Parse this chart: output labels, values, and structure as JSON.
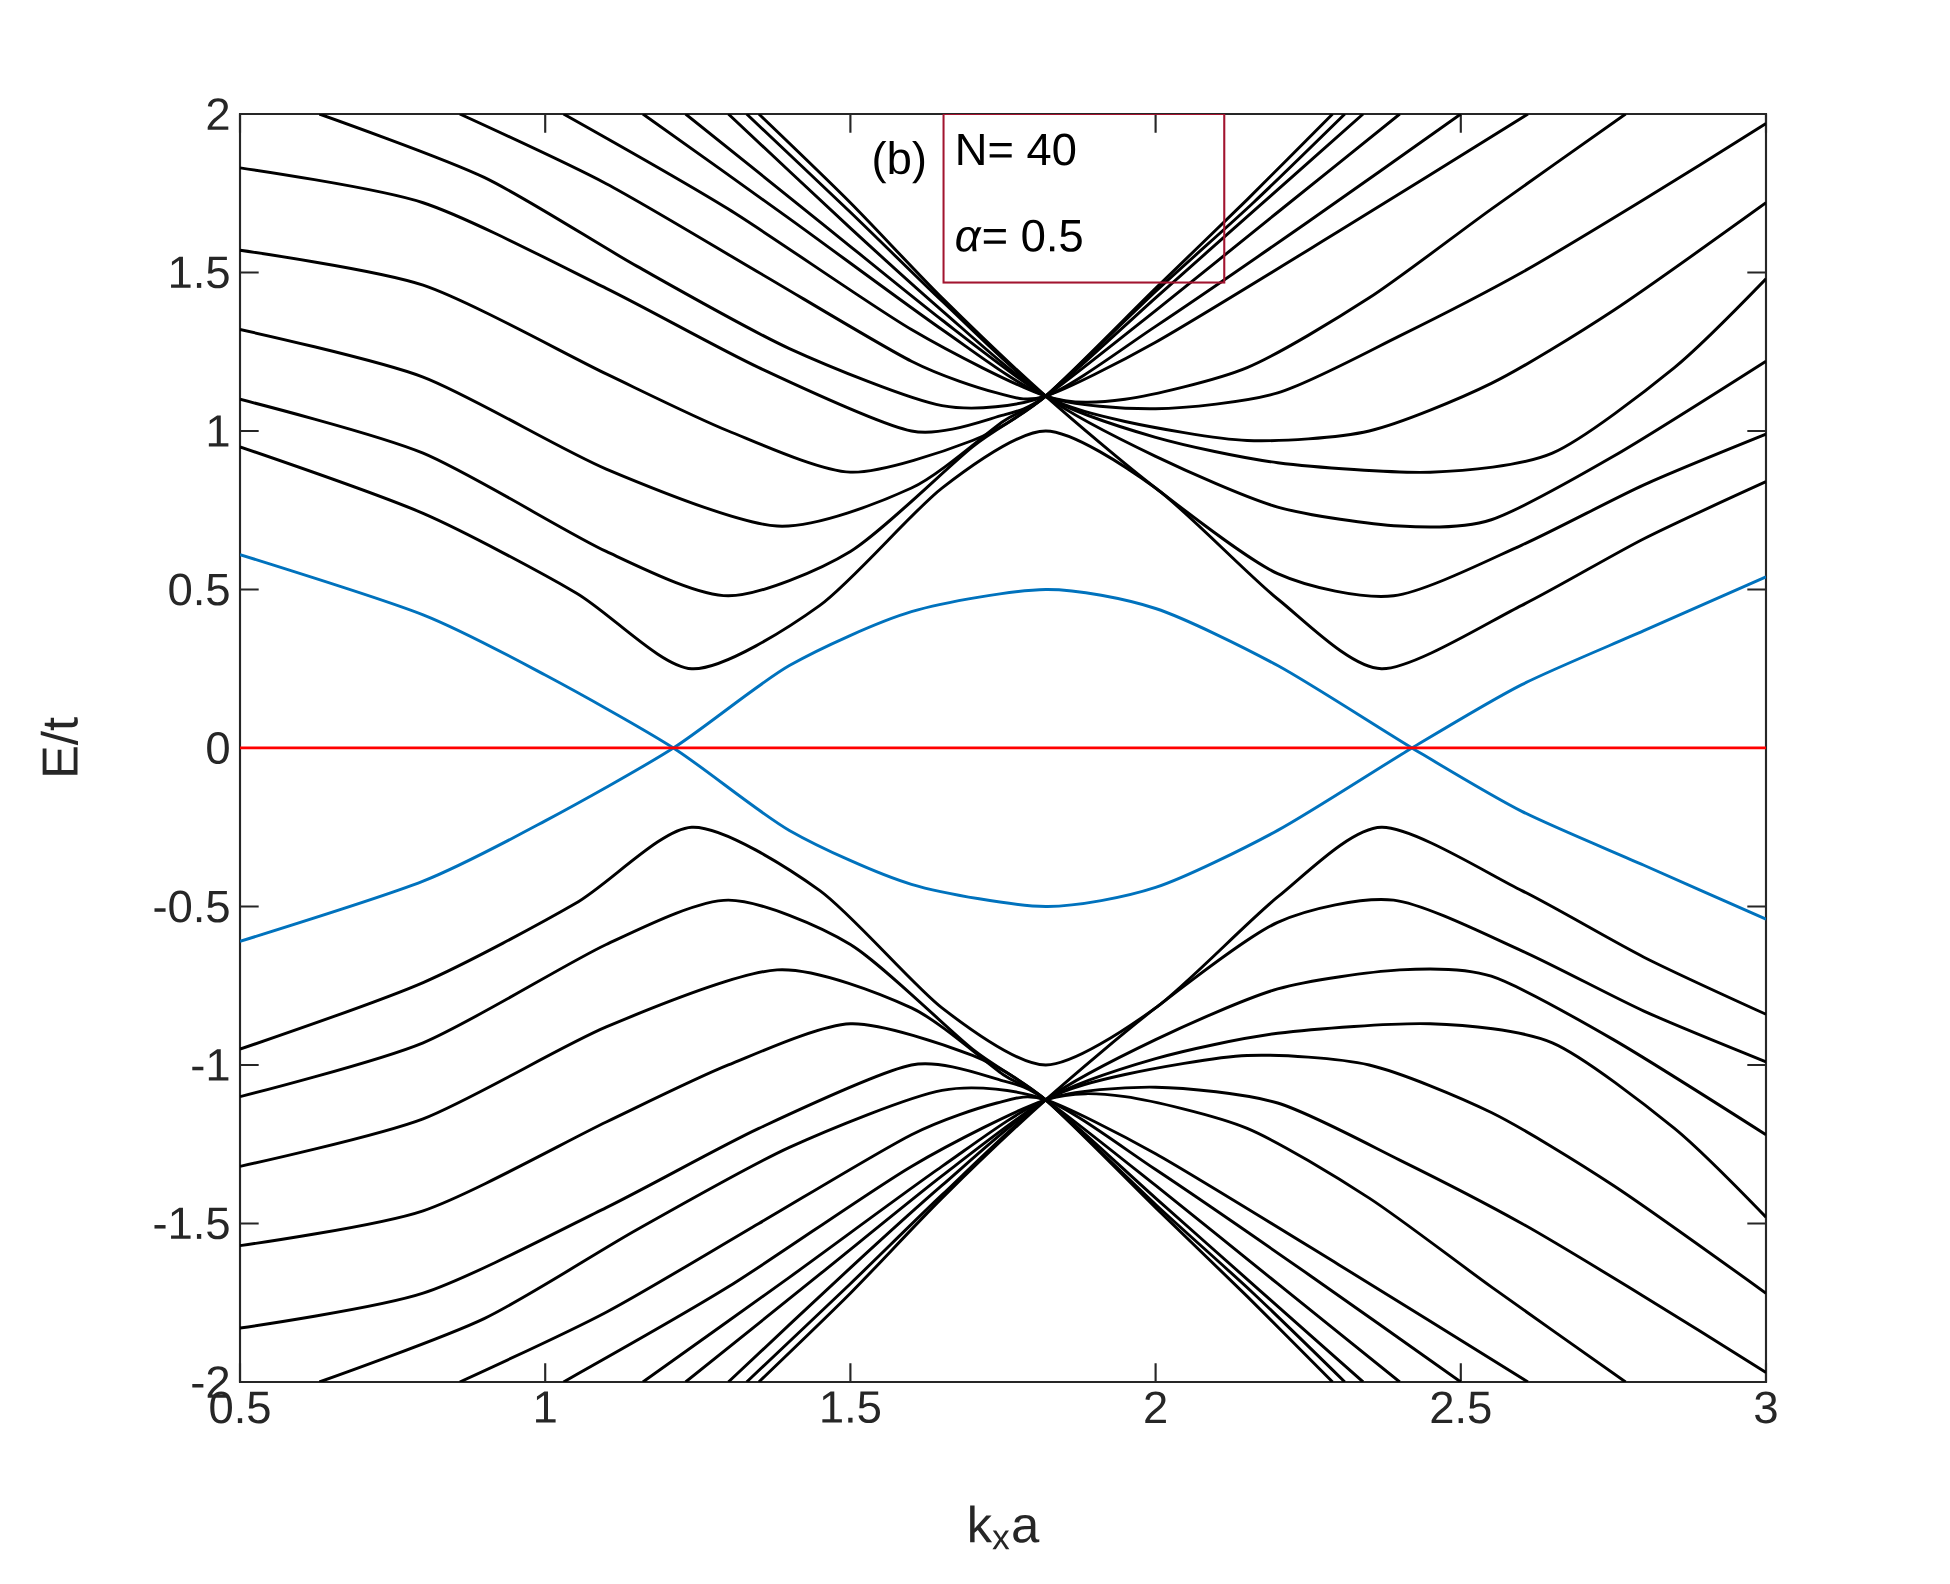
{
  "chart_data": {
    "type": "line",
    "xlabel": "k$_{x}$a",
    "ylabel": "E/t",
    "xlim": [
      0.5,
      3
    ],
    "ylim": [
      -2,
      2
    ],
    "xticks": [
      0.5,
      1,
      1.5,
      2,
      2.5,
      3
    ],
    "yticks": [
      -2,
      -1.5,
      -1,
      -0.5,
      0,
      0.5,
      1,
      1.5,
      2
    ],
    "annotations": [
      "(b)",
      "N= 40",
      "*α*= 0.5"
    ],
    "series": [
      {
        "color": "#000000",
        "x": [
          0.5,
          0.8,
          1.05,
          1.24,
          1.45,
          1.65,
          1.82,
          2.0,
          2.2,
          2.37,
          2.6,
          2.8,
          3.0
        ],
        "values": [
          0.95,
          0.74,
          0.49,
          0.25,
          0.45,
          0.82,
          1.0,
          0.82,
          0.47,
          0.25,
          0.45,
          0.66,
          0.84
        ]
      },
      {
        "color": "#000000",
        "x": [
          0.5,
          0.8,
          1.1,
          1.3,
          1.5,
          1.7,
          1.82,
          2.0,
          2.15,
          2.29
        ],
        "values": [
          1.1,
          0.93,
          0.62,
          0.48,
          0.62,
          0.95,
          1.11,
          1.45,
          1.73,
          2.0
        ]
      },
      {
        "color": "#000000",
        "x": [
          0.5,
          0.8,
          1.1,
          1.38,
          1.6,
          1.75,
          1.82,
          2.0,
          2.16,
          2.31
        ],
        "values": [
          1.32,
          1.17,
          0.88,
          0.7,
          0.82,
          1.03,
          1.11,
          1.44,
          1.72,
          2.0
        ]
      },
      {
        "color": "#000000",
        "x": [
          0.5,
          0.8,
          1.1,
          1.3,
          1.5,
          1.7,
          1.82,
          2.0,
          2.17,
          2.34
        ],
        "values": [
          1.57,
          1.46,
          1.18,
          1.0,
          0.87,
          0.97,
          1.11,
          1.42,
          1.71,
          2.0
        ]
      },
      {
        "color": "#000000",
        "x": [
          0.5,
          0.8,
          1.1,
          1.35,
          1.6,
          1.75,
          1.82,
          2.0,
          2.2,
          2.4
        ],
        "values": [
          1.83,
          1.72,
          1.45,
          1.2,
          1.0,
          1.05,
          1.11,
          1.38,
          1.69,
          2.0
        ]
      },
      {
        "color": "#000000",
        "x": [
          0.63,
          0.9,
          1.15,
          1.4,
          1.65,
          1.82,
          2.0,
          2.25,
          2.5
        ],
        "values": [
          2.0,
          1.8,
          1.52,
          1.26,
          1.08,
          1.11,
          1.33,
          1.66,
          2.0
        ]
      },
      {
        "color": "#000000",
        "x": [
          0.86,
          1.1,
          1.35,
          1.6,
          1.74,
          1.82,
          2.0,
          2.3,
          2.61
        ],
        "values": [
          2.0,
          1.78,
          1.5,
          1.22,
          1.12,
          1.11,
          1.28,
          1.63,
          2.0
        ]
      },
      {
        "color": "#000000",
        "x": [
          1.35,
          1.5,
          1.65,
          1.82,
          2.0,
          2.2,
          2.39,
          2.6,
          2.8,
          3.0
        ],
        "values": [
          2.0,
          1.72,
          1.42,
          1.11,
          0.82,
          0.55,
          0.48,
          0.64,
          0.83,
          0.99
        ]
      },
      {
        "color": "#000000",
        "x": [
          1.33,
          1.5,
          1.65,
          1.82,
          2.0,
          2.2,
          2.4,
          2.55,
          2.75,
          3.0
        ],
        "values": [
          2.0,
          1.69,
          1.41,
          1.11,
          0.92,
          0.76,
          0.7,
          0.72,
          0.92,
          1.22
        ]
      },
      {
        "color": "#000000",
        "x": [
          1.3,
          1.5,
          1.65,
          1.82,
          2.0,
          2.2,
          2.45,
          2.65,
          2.85,
          3.0
        ],
        "values": [
          2.0,
          1.64,
          1.38,
          1.11,
          0.98,
          0.9,
          0.87,
          0.93,
          1.2,
          1.48
        ]
      },
      {
        "color": "#000000",
        "x": [
          1.23,
          1.45,
          1.65,
          1.82,
          1.95,
          2.15,
          2.35,
          2.55,
          2.75,
          3.0
        ],
        "values": [
          2.0,
          1.66,
          1.35,
          1.11,
          1.03,
          0.97,
          1.0,
          1.15,
          1.38,
          1.72
        ]
      },
      {
        "color": "#000000",
        "x": [
          1.16,
          1.4,
          1.65,
          1.82,
          2.0,
          2.2,
          2.4,
          2.6,
          2.8,
          3.0
        ],
        "values": [
          2.0,
          1.67,
          1.32,
          1.11,
          1.07,
          1.12,
          1.3,
          1.5,
          1.73,
          1.97
        ]
      },
      {
        "color": "#000000",
        "x": [
          1.03,
          1.3,
          1.6,
          1.82,
          1.95,
          2.15,
          2.35,
          2.55,
          2.77
        ],
        "values": [
          2.0,
          1.7,
          1.32,
          1.11,
          1.1,
          1.2,
          1.42,
          1.7,
          2.0
        ]
      },
      {
        "color": "#000000",
        "x": [
          0.5,
          0.8,
          1.05,
          1.24,
          1.45,
          1.65,
          1.82,
          2.0,
          2.2,
          2.37,
          2.6,
          2.8,
          3.0
        ],
        "values": [
          -0.95,
          -0.74,
          -0.49,
          -0.25,
          -0.45,
          -0.82,
          -1.0,
          -0.82,
          -0.47,
          -0.25,
          -0.45,
          -0.66,
          -0.84
        ]
      },
      {
        "color": "#000000",
        "x": [
          0.5,
          0.8,
          1.1,
          1.3,
          1.5,
          1.7,
          1.82,
          2.0,
          2.15,
          2.29
        ],
        "values": [
          -1.1,
          -0.93,
          -0.62,
          -0.48,
          -0.62,
          -0.95,
          -1.11,
          -1.45,
          -1.73,
          -2.0
        ]
      },
      {
        "color": "#000000",
        "x": [
          0.5,
          0.8,
          1.1,
          1.38,
          1.6,
          1.75,
          1.82,
          2.0,
          2.16,
          2.31
        ],
        "values": [
          -1.32,
          -1.17,
          -0.88,
          -0.7,
          -0.82,
          -1.03,
          -1.11,
          -1.44,
          -1.72,
          -2.0
        ]
      },
      {
        "color": "#000000",
        "x": [
          0.5,
          0.8,
          1.1,
          1.3,
          1.5,
          1.7,
          1.82,
          2.0,
          2.17,
          2.34
        ],
        "values": [
          -1.57,
          -1.46,
          -1.18,
          -1.0,
          -0.87,
          -0.97,
          -1.11,
          -1.42,
          -1.71,
          -2.0
        ]
      },
      {
        "color": "#000000",
        "x": [
          0.5,
          0.8,
          1.1,
          1.35,
          1.6,
          1.75,
          1.82,
          2.0,
          2.2,
          2.4
        ],
        "values": [
          -1.83,
          -1.72,
          -1.45,
          -1.2,
          -1.0,
          -1.05,
          -1.11,
          -1.38,
          -1.69,
          -2.0
        ]
      },
      {
        "color": "#000000",
        "x": [
          0.63,
          0.9,
          1.15,
          1.4,
          1.65,
          1.82,
          2.0,
          2.25,
          2.5
        ],
        "values": [
          -2.0,
          -1.8,
          -1.52,
          -1.26,
          -1.08,
          -1.11,
          -1.33,
          -1.66,
          -2.0
        ]
      },
      {
        "color": "#000000",
        "x": [
          0.86,
          1.1,
          1.35,
          1.6,
          1.74,
          1.82,
          2.0,
          2.3,
          2.61
        ],
        "values": [
          -2.0,
          -1.78,
          -1.5,
          -1.22,
          -1.12,
          -1.11,
          -1.28,
          -1.63,
          -2.0
        ]
      },
      {
        "color": "#000000",
        "x": [
          1.35,
          1.5,
          1.65,
          1.82,
          2.0,
          2.2,
          2.39,
          2.6,
          2.8,
          3.0
        ],
        "values": [
          -2.0,
          -1.72,
          -1.42,
          -1.11,
          -0.82,
          -0.55,
          -0.48,
          -0.64,
          -0.83,
          -0.99
        ]
      },
      {
        "color": "#000000",
        "x": [
          1.33,
          1.5,
          1.65,
          1.82,
          2.0,
          2.2,
          2.4,
          2.55,
          2.75,
          3.0
        ],
        "values": [
          -2.0,
          -1.69,
          -1.41,
          -1.11,
          -0.92,
          -0.76,
          -0.7,
          -0.72,
          -0.92,
          -1.22
        ]
      },
      {
        "color": "#000000",
        "x": [
          1.3,
          1.5,
          1.65,
          1.82,
          2.0,
          2.2,
          2.45,
          2.65,
          2.85,
          3.0
        ],
        "values": [
          -2.0,
          -1.64,
          -1.38,
          -1.11,
          -0.98,
          -0.9,
          -0.87,
          -0.93,
          -1.2,
          -1.48
        ]
      },
      {
        "color": "#000000",
        "x": [
          1.23,
          1.45,
          1.65,
          1.82,
          1.95,
          2.15,
          2.35,
          2.55,
          2.75,
          3.0
        ],
        "values": [
          -2.0,
          -1.66,
          -1.35,
          -1.11,
          -1.03,
          -0.97,
          -1.0,
          -1.15,
          -1.38,
          -1.72
        ]
      },
      {
        "color": "#000000",
        "x": [
          1.16,
          1.4,
          1.65,
          1.82,
          2.0,
          2.2,
          2.4,
          2.6,
          2.8,
          3.0
        ],
        "values": [
          -2.0,
          -1.67,
          -1.32,
          -1.11,
          -1.07,
          -1.12,
          -1.3,
          -1.5,
          -1.73,
          -1.97
        ]
      },
      {
        "color": "#000000",
        "x": [
          1.03,
          1.3,
          1.6,
          1.82,
          1.95,
          2.15,
          2.35,
          2.55,
          2.77
        ],
        "values": [
          -2.0,
          -1.7,
          -1.32,
          -1.11,
          -1.1,
          -1.2,
          -1.42,
          -1.7,
          -2.0
        ]
      },
      {
        "color": "#0072bd",
        "x": [
          0.5,
          0.8,
          1.0,
          1.21,
          1.4,
          1.6,
          1.82,
          2.0,
          2.2,
          2.42,
          2.6,
          2.8,
          3.0
        ],
        "values": [
          0.61,
          0.42,
          0.23,
          0.0,
          -0.26,
          -0.43,
          -0.5,
          -0.44,
          -0.26,
          0.0,
          0.2,
          0.37,
          0.54
        ]
      },
      {
        "color": "#0072bd",
        "x": [
          0.5,
          0.8,
          1.0,
          1.21,
          1.4,
          1.6,
          1.82,
          2.0,
          2.2,
          2.42,
          2.6,
          2.8,
          3.0
        ],
        "values": [
          -0.61,
          -0.42,
          -0.23,
          0.0,
          0.26,
          0.43,
          0.5,
          0.44,
          0.26,
          0.0,
          -0.2,
          -0.37,
          -0.54
        ]
      },
      {
        "color": "#ff0000",
        "x": [
          0.5,
          3.0
        ],
        "values": [
          0,
          0
        ]
      }
    ]
  }
}
